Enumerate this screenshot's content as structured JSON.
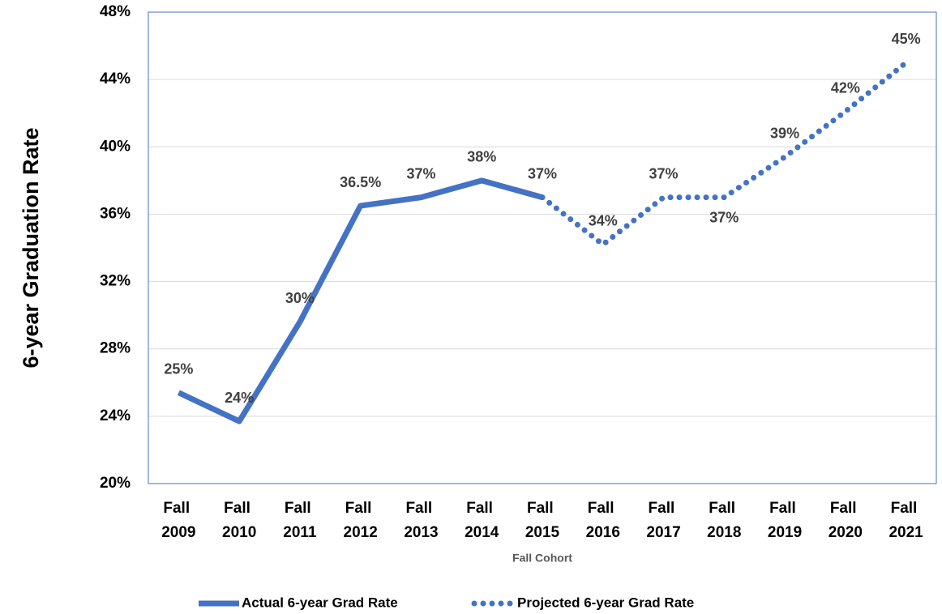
{
  "chart_data": {
    "type": "line",
    "x_label": "Fall Cohort",
    "y_label": "6-year Graduation Rate",
    "categories": [
      "Fall 2009",
      "Fall 2010",
      "Fall 2011",
      "Fall 2012",
      "Fall 2013",
      "Fall 2014",
      "Fall 2015",
      "Fall 2016",
      "Fall 2017",
      "Fall 2018",
      "Fall 2019",
      "Fall 2020",
      "Fall 2021"
    ],
    "series": [
      {
        "name": "Actual 6-year Grad Rate",
        "color": "#4472c4",
        "style": "solid",
        "values": [
          25.4,
          23.7,
          29.6,
          36.5,
          37,
          38,
          37,
          null,
          null,
          null,
          null,
          null,
          null
        ],
        "value_labels": [
          "25%",
          "24%",
          "30%",
          "36.5%",
          "37%",
          "38%",
          "37%",
          null,
          null,
          null,
          null,
          null,
          null
        ]
      },
      {
        "name": "Projected 6-year Grad Rate",
        "color": "#4472c4",
        "style": "dotted",
        "values": [
          null,
          null,
          null,
          null,
          null,
          null,
          37,
          34.2,
          37,
          37,
          39.4,
          42.1,
          45
        ],
        "value_labels": [
          null,
          null,
          null,
          null,
          null,
          null,
          null,
          "34%",
          "37%",
          "37%",
          "39%",
          "42%",
          "45%"
        ]
      }
    ],
    "ylim": [
      20,
      48
    ],
    "yticks": [
      {
        "value": 20,
        "label": "20%"
      },
      {
        "value": 24,
        "label": "24%"
      },
      {
        "value": 28,
        "label": "28%"
      },
      {
        "value": 32,
        "label": "32%"
      },
      {
        "value": 36,
        "label": "36%"
      },
      {
        "value": 40,
        "label": "40%"
      },
      {
        "value": 44,
        "label": "44%"
      },
      {
        "value": 48,
        "label": "48%"
      }
    ],
    "grid": true,
    "legend": "bottom"
  }
}
